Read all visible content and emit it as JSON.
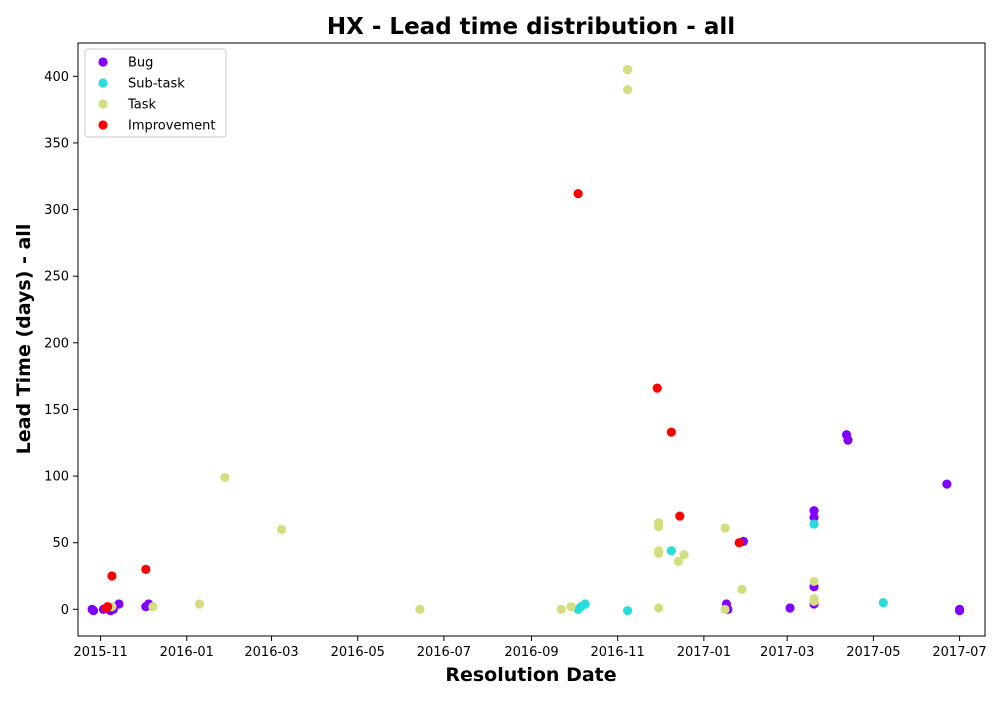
{
  "chart_data": {
    "type": "scatter",
    "title": "HX - Lead time distribution - all",
    "xlabel": "Resolution Date",
    "ylabel": "Lead Time (days) - all",
    "x_axis": "date",
    "xlim": [
      "2015-10-16",
      "2017-07-19"
    ],
    "ylim": [
      -20,
      425
    ],
    "xticks": [
      "2015-11",
      "2016-01",
      "2016-03",
      "2016-05",
      "2016-07",
      "2016-09",
      "2016-11",
      "2017-01",
      "2017-03",
      "2017-05",
      "2017-07"
    ],
    "yticks": [
      0,
      50,
      100,
      150,
      200,
      250,
      300,
      350,
      400
    ],
    "grid": false,
    "legend_position": "top-left",
    "series": [
      {
        "name": "Bug",
        "color": "#8000ff",
        "points": [
          [
            "2015-10-26",
            0
          ],
          [
            "2015-10-27",
            -1
          ],
          [
            "2015-11-03",
            0
          ],
          [
            "2015-11-05",
            1
          ],
          [
            "2015-11-08",
            -1
          ],
          [
            "2015-11-10",
            0
          ],
          [
            "2015-11-14",
            4
          ],
          [
            "2015-12-03",
            2
          ],
          [
            "2015-12-05",
            4
          ],
          [
            "2017-01-17",
            4
          ],
          [
            "2017-01-18",
            0
          ],
          [
            "2017-01-29",
            51
          ],
          [
            "2017-03-03",
            1
          ],
          [
            "2017-03-20",
            74
          ],
          [
            "2017-03-20",
            69
          ],
          [
            "2017-03-20",
            17
          ],
          [
            "2017-03-20",
            4
          ],
          [
            "2017-04-12",
            131
          ],
          [
            "2017-04-13",
            127
          ],
          [
            "2017-06-22",
            94
          ],
          [
            "2017-07-01",
            0
          ],
          [
            "2017-07-01",
            -1
          ]
        ]
      },
      {
        "name": "Sub-task",
        "color": "#2adddd",
        "points": [
          [
            "2016-10-04",
            0
          ],
          [
            "2016-10-06",
            2
          ],
          [
            "2016-10-09",
            4
          ],
          [
            "2016-11-08",
            -1
          ],
          [
            "2016-12-09",
            44
          ],
          [
            "2017-03-20",
            64
          ],
          [
            "2017-05-08",
            5
          ]
        ]
      },
      {
        "name": "Task",
        "color": "#d4dd80",
        "points": [
          [
            "2015-11-09",
            2
          ],
          [
            "2015-12-08",
            2
          ],
          [
            "2016-01-10",
            4
          ],
          [
            "2016-01-28",
            99
          ],
          [
            "2016-03-08",
            60
          ],
          [
            "2016-06-14",
            0
          ],
          [
            "2016-09-22",
            0
          ],
          [
            "2016-09-29",
            2
          ],
          [
            "2016-11-08",
            405
          ],
          [
            "2016-11-08",
            405
          ],
          [
            "2016-11-08",
            390
          ],
          [
            "2016-11-30",
            65
          ],
          [
            "2016-11-30",
            62
          ],
          [
            "2016-11-30",
            44
          ],
          [
            "2016-11-30",
            42
          ],
          [
            "2016-11-30",
            1
          ],
          [
            "2016-12-14",
            36
          ],
          [
            "2016-12-18",
            41
          ],
          [
            "2017-01-16",
            61
          ],
          [
            "2017-01-16",
            0
          ],
          [
            "2017-01-28",
            15
          ],
          [
            "2017-03-20",
            21
          ],
          [
            "2017-03-20",
            8
          ],
          [
            "2017-03-20",
            6
          ]
        ]
      },
      {
        "name": "Improvement",
        "color": "#ff0000",
        "points": [
          [
            "2015-11-06",
            2
          ],
          [
            "2015-11-05",
            1
          ],
          [
            "2015-11-09",
            25
          ],
          [
            "2015-12-03",
            30
          ],
          [
            "2016-10-04",
            312
          ],
          [
            "2016-11-29",
            166
          ],
          [
            "2016-12-09",
            133
          ],
          [
            "2016-12-15",
            70
          ],
          [
            "2017-01-26",
            50
          ]
        ]
      }
    ]
  }
}
